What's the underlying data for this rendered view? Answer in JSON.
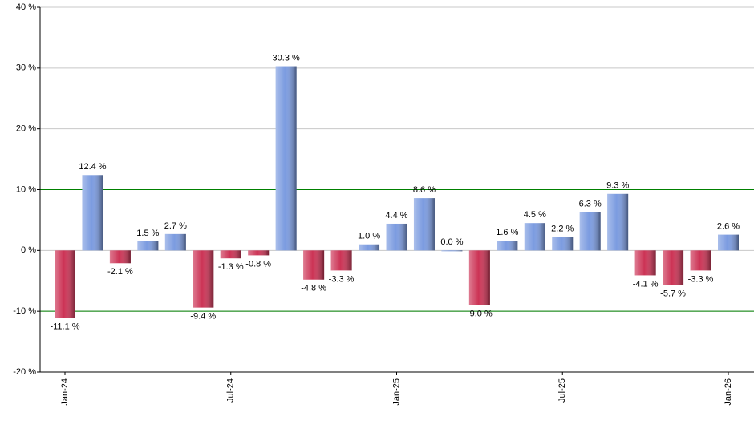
{
  "chart_data": {
    "type": "bar",
    "categories": [
      "Jan-24",
      null,
      null,
      null,
      null,
      null,
      "Jul-24",
      null,
      null,
      null,
      null,
      null,
      "Jan-25",
      null,
      null,
      null,
      null,
      null,
      "Jul-25",
      null,
      null,
      null,
      null,
      null,
      "Jan-26"
    ],
    "values": [
      -11.1,
      12.4,
      -2.1,
      1.5,
      2.7,
      -9.4,
      -1.3,
      -0.8,
      30.3,
      -4.8,
      -3.3,
      1.0,
      4.4,
      8.6,
      0.0,
      -9.0,
      1.6,
      4.5,
      2.2,
      6.3,
      9.3,
      -4.1,
      -5.7,
      -3.3,
      2.6
    ],
    "value_labels": [
      "-11.1 %",
      "12.4 %",
      "-2.1 %",
      "1.5 %",
      "2.7 %",
      "-9.4 %",
      "-1.3 %",
      "-0.8 %",
      "30.3 %",
      "-4.8 %",
      "-3.3 %",
      "1.0 %",
      "4.4 %",
      "8.6 %",
      "0.0 %",
      "-9.0 %",
      "1.6 %",
      "4.5 %",
      "2.2 %",
      "6.3 %",
      "9.3 %",
      "-4.1 %",
      "-5.7 %",
      "-3.3 %",
      "2.6 %"
    ],
    "positive_color": "#7b9be0",
    "negative_color": "#cc3355",
    "ylim": [
      -20,
      40
    ],
    "yticks": [
      {
        "value": -20,
        "label": "-20 %"
      },
      {
        "value": -10,
        "label": "-10 %"
      },
      {
        "value": 0,
        "label": "0 %"
      },
      {
        "value": 10,
        "label": "10 %"
      },
      {
        "value": 20,
        "label": "20 %"
      },
      {
        "value": 30,
        "label": "30 %"
      },
      {
        "value": 40,
        "label": "40 %"
      }
    ],
    "grid": true,
    "grid_color": "#c8c8c8",
    "reference_lines": {
      "values": [
        -10,
        10
      ],
      "color": "#008000"
    }
  }
}
